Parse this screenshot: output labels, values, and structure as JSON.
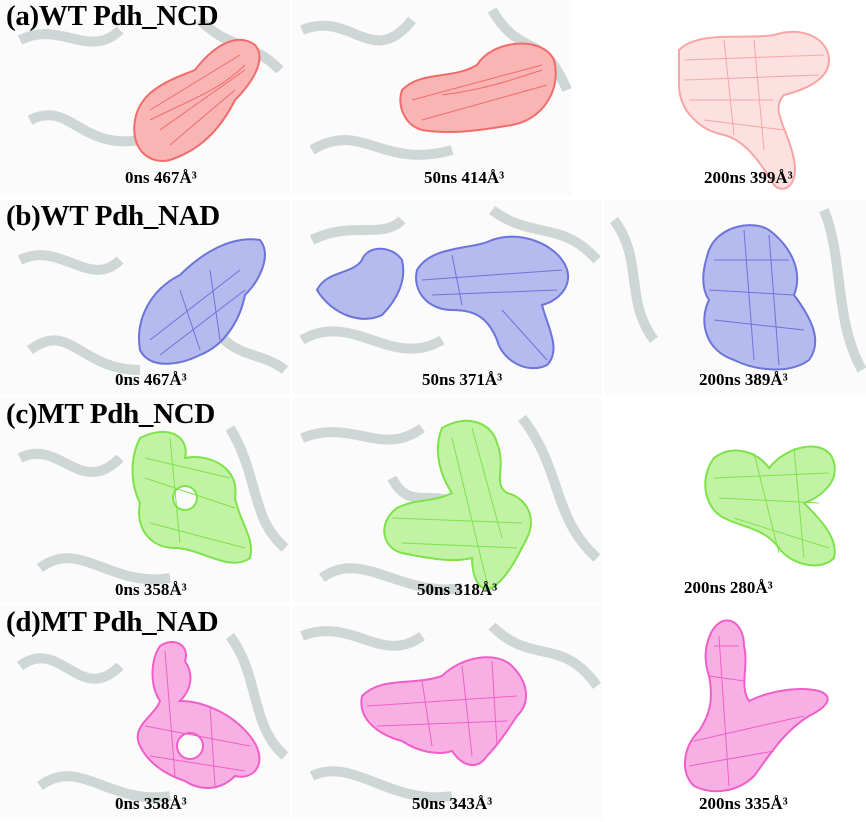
{
  "rows": [
    {
      "title": "(a)WT Pdh_NCD",
      "color": "#f26b6b",
      "fill": "#f9b4b4",
      "panels": [
        {
          "time": "0ns",
          "volume": "467Å³"
        },
        {
          "time": "50ns",
          "volume": "414Å³"
        },
        {
          "time": "200ns",
          "volume": "399Å³"
        }
      ]
    },
    {
      "title": "(b)WT Pdh_NAD",
      "color": "#6b74d9",
      "fill": "#b6bbef",
      "panels": [
        {
          "time": "0ns",
          "volume": "467Å³"
        },
        {
          "time": "50ns",
          "volume": "371Å³"
        },
        {
          "time": "200ns",
          "volume": "389Å³"
        }
      ]
    },
    {
      "title": "(c)MT Pdh_NCD",
      "color": "#7ee34a",
      "fill": "#c2f2a4",
      "panels": [
        {
          "time": "0ns",
          "volume": "358Å³"
        },
        {
          "time": "50ns",
          "volume": "318Å³"
        },
        {
          "time": "200ns",
          "volume": "280Å³"
        }
      ]
    },
    {
      "title": "(d)MT Pdh_NAD",
      "color": "#f05fc8",
      "fill": "#f8b0e4",
      "panels": [
        {
          "time": "0ns",
          "volume": "358Å³"
        },
        {
          "time": "50ns",
          "volume": "343Å³"
        },
        {
          "time": "200ns",
          "volume": "335Å³"
        }
      ]
    }
  ],
  "icons": {
    "protein_backbone": "gray-ribbon-cartoon",
    "cavity_surface": "mesh-surface"
  }
}
